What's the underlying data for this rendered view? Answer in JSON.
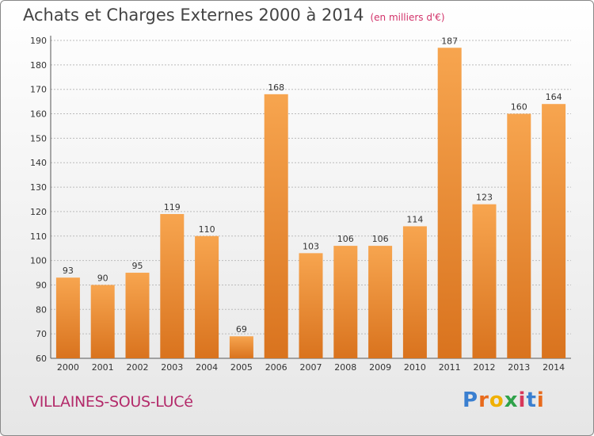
{
  "header": {
    "title": "Achats et Charges Externes 2000 à 2014",
    "subtitle": "(en milliers d'€)"
  },
  "footer": {
    "commune": "VILLAINES-SOUS-LUCé",
    "logo_text": "Proxiti"
  },
  "colors": {
    "bar_light": "#f7a54f",
    "bar_dark": "#d9731e",
    "grid": "#bbbbbb"
  },
  "chart_data": {
    "type": "bar",
    "title": "Achats et Charges Externes 2000 à 2014",
    "subtitle": "(en milliers d'€)",
    "xlabel": "",
    "ylabel": "",
    "categories": [
      "2000",
      "2001",
      "2002",
      "2003",
      "2004",
      "2005",
      "2006",
      "2007",
      "2008",
      "2009",
      "2010",
      "2011",
      "2012",
      "2013",
      "2014"
    ],
    "values": [
      93,
      90,
      95,
      119,
      110,
      69,
      168,
      103,
      106,
      106,
      114,
      187,
      123,
      160,
      164
    ],
    "ylim": [
      60,
      190
    ],
    "yticks": [
      60,
      70,
      80,
      90,
      100,
      110,
      120,
      130,
      140,
      150,
      160,
      170,
      180,
      190
    ],
    "grid": true,
    "legend": "none"
  }
}
